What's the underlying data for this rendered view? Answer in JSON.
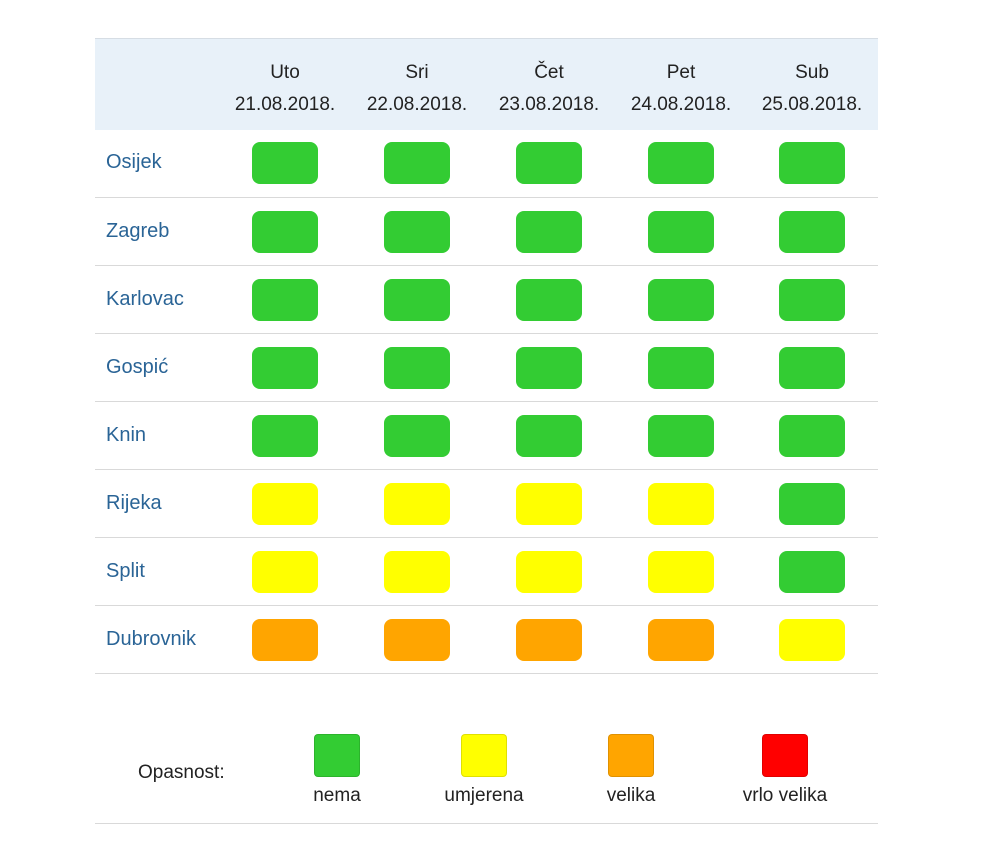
{
  "colors": {
    "nema": "#33cc33",
    "umjerena": "#ffff00",
    "velika": "#ffa500",
    "vrlo_velika": "#ff0000",
    "city_text": "#2a6496",
    "header_bg": "#e8f1f9"
  },
  "days": [
    {
      "name": "Uto",
      "date": "21.08.2018."
    },
    {
      "name": "Sri",
      "date": "22.08.2018."
    },
    {
      "name": "Čet",
      "date": "23.08.2018."
    },
    {
      "name": "Pet",
      "date": "24.08.2018."
    },
    {
      "name": "Sub",
      "date": "25.08.2018."
    }
  ],
  "rows": [
    {
      "city": "Osijek",
      "levels": [
        "nema",
        "nema",
        "nema",
        "nema",
        "nema"
      ]
    },
    {
      "city": "Zagreb",
      "levels": [
        "nema",
        "nema",
        "nema",
        "nema",
        "nema"
      ]
    },
    {
      "city": "Karlovac",
      "levels": [
        "nema",
        "nema",
        "nema",
        "nema",
        "nema"
      ]
    },
    {
      "city": "Gospić",
      "levels": [
        "nema",
        "nema",
        "nema",
        "nema",
        "nema"
      ]
    },
    {
      "city": "Knin",
      "levels": [
        "nema",
        "nema",
        "nema",
        "nema",
        "nema"
      ]
    },
    {
      "city": "Rijeka",
      "levels": [
        "umjerena",
        "umjerena",
        "umjerena",
        "umjerena",
        "nema"
      ]
    },
    {
      "city": "Split",
      "levels": [
        "umjerena",
        "umjerena",
        "umjerena",
        "umjerena",
        "nema"
      ]
    },
    {
      "city": "Dubrovnik",
      "levels": [
        "velika",
        "velika",
        "velika",
        "velika",
        "umjerena"
      ]
    }
  ],
  "legend": {
    "label": "Opasnost:",
    "items": [
      {
        "key": "nema",
        "label": "nema"
      },
      {
        "key": "umjerena",
        "label": "umjerena"
      },
      {
        "key": "velika",
        "label": "velika"
      },
      {
        "key": "vrlo_velika",
        "label": "vrlo velika"
      }
    ]
  }
}
